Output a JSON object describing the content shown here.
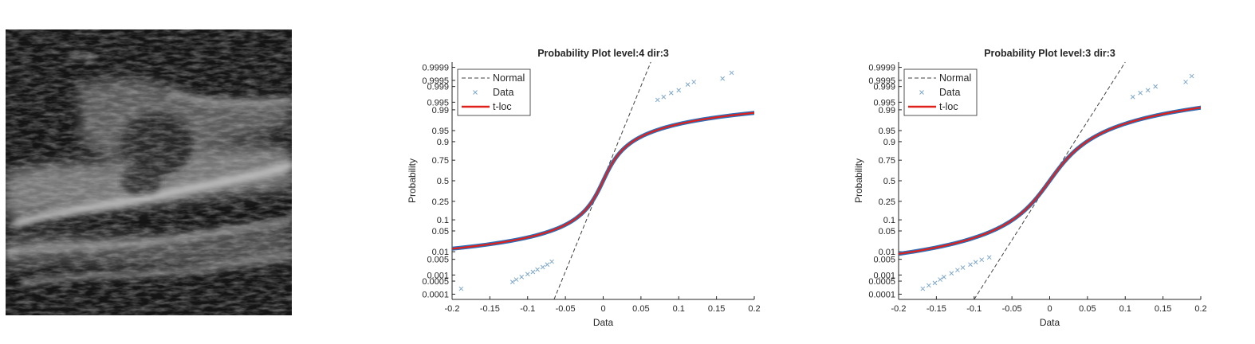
{
  "chart_data": [
    {
      "type": "scatter",
      "title": "Probability Plot level:4 dir:3",
      "xlabel": "Data",
      "ylabel": "Probability",
      "xlim": [
        -0.2,
        0.2
      ],
      "xticks": [
        "-0.2",
        "-0.15",
        "-0.1",
        "-0.05",
        "0",
        "0.05",
        "0.1",
        "0.15",
        "0.2"
      ],
      "yticks": [
        "0.0001",
        "0.0005",
        "0.001",
        "0.005",
        "0.01",
        "0.05",
        "0.1",
        "0.25",
        "0.5",
        "0.75",
        "0.9",
        "0.95",
        "0.99",
        "0.995",
        "0.999",
        "0.9995",
        "0.9999"
      ],
      "ytick_values": [
        0.0001,
        0.0005,
        0.001,
        0.005,
        0.01,
        0.05,
        0.1,
        0.25,
        0.5,
        0.75,
        0.9,
        0.95,
        0.99,
        0.995,
        0.999,
        0.9995,
        0.9999
      ],
      "legend": [
        "Normal",
        "Data",
        "t-loc"
      ],
      "legend_position": "top-left",
      "normal_line": {
        "x": [
          -0.065,
          0.063
        ],
        "p": [
          5e-05,
          0.99995
        ]
      },
      "tloc": {
        "scale": 0.016,
        "df": 1.3
      },
      "data_tail_points": [
        {
          "x": -0.188,
          "p": 0.0002
        },
        {
          "x": -0.12,
          "p": 0.00045
        },
        {
          "x": -0.115,
          "p": 0.0006
        },
        {
          "x": -0.108,
          "p": 0.0008
        },
        {
          "x": -0.1,
          "p": 0.0011
        },
        {
          "x": -0.093,
          "p": 0.0014
        },
        {
          "x": -0.087,
          "p": 0.0018
        },
        {
          "x": -0.08,
          "p": 0.0023
        },
        {
          "x": -0.074,
          "p": 0.003
        },
        {
          "x": -0.068,
          "p": 0.004
        },
        {
          "x": 0.072,
          "p": 0.996
        },
        {
          "x": 0.08,
          "p": 0.997
        },
        {
          "x": 0.09,
          "p": 0.998
        },
        {
          "x": 0.1,
          "p": 0.9985
        },
        {
          "x": 0.112,
          "p": 0.9992
        },
        {
          "x": 0.12,
          "p": 0.9994
        },
        {
          "x": 0.158,
          "p": 0.9996
        },
        {
          "x": 0.17,
          "p": 0.9998
        }
      ]
    },
    {
      "type": "scatter",
      "title": "Probability Plot level:3 dir:3",
      "xlabel": "Data",
      "ylabel": "Probability",
      "xlim": [
        -0.2,
        0.2
      ],
      "xticks": [
        "-0.2",
        "-0.15",
        "-0.1",
        "-0.05",
        "0",
        "0.05",
        "0.1",
        "0.15",
        "0.2"
      ],
      "yticks": [
        "0.0001",
        "0.0005",
        "0.001",
        "0.005",
        "0.01",
        "0.05",
        "0.1",
        "0.25",
        "0.5",
        "0.75",
        "0.9",
        "0.95",
        "0.99",
        "0.995",
        "0.999",
        "0.9995",
        "0.9999"
      ],
      "ytick_values": [
        0.0001,
        0.0005,
        0.001,
        0.005,
        0.01,
        0.05,
        0.1,
        0.25,
        0.5,
        0.75,
        0.9,
        0.95,
        0.99,
        0.995,
        0.999,
        0.9995,
        0.9999
      ],
      "legend": [
        "Normal",
        "Data",
        "t-loc"
      ],
      "legend_position": "top-left",
      "normal_line": {
        "x": [
          -0.1,
          0.1
        ],
        "p": [
          5e-05,
          0.99995
        ]
      },
      "tloc": {
        "scale": 0.026,
        "df": 2.0
      },
      "data_tail_points": [
        {
          "x": -0.168,
          "p": 0.0002
        },
        {
          "x": -0.16,
          "p": 0.0003
        },
        {
          "x": -0.152,
          "p": 0.0004
        },
        {
          "x": -0.145,
          "p": 0.0006
        },
        {
          "x": -0.14,
          "p": 0.0008
        },
        {
          "x": -0.13,
          "p": 0.0012
        },
        {
          "x": -0.122,
          "p": 0.0017
        },
        {
          "x": -0.115,
          "p": 0.0022
        },
        {
          "x": -0.105,
          "p": 0.003
        },
        {
          "x": -0.098,
          "p": 0.0038
        },
        {
          "x": -0.09,
          "p": 0.0048
        },
        {
          "x": -0.08,
          "p": 0.006
        },
        {
          "x": 0.11,
          "p": 0.997
        },
        {
          "x": 0.12,
          "p": 0.998
        },
        {
          "x": 0.13,
          "p": 0.9985
        },
        {
          "x": 0.14,
          "p": 0.999
        },
        {
          "x": 0.18,
          "p": 0.9994
        },
        {
          "x": 0.188,
          "p": 0.9997
        }
      ]
    }
  ],
  "colors": {
    "normal_line": "#404040",
    "data_marker": "#7fa7c9",
    "data_dense": "#2f6db5",
    "tloc_line": "#e0201b"
  }
}
